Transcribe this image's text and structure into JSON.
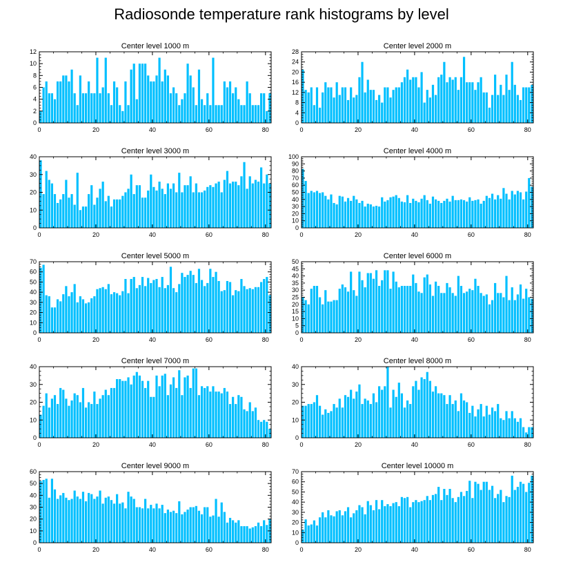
{
  "title": "Radiosonde temperature rank histograms by level",
  "bar_color": "#00bfff",
  "chart_data": [
    {
      "type": "bar",
      "title": "Center level 1000 m",
      "xlabel": "",
      "ylabel": "",
      "xlim": [
        0,
        82
      ],
      "ylim": [
        0,
        12
      ],
      "xticks": [
        0,
        20,
        40,
        60,
        80
      ],
      "yticks": [
        0,
        2,
        4,
        6,
        8,
        10,
        12
      ],
      "x_start": 0,
      "values": [
        2,
        6,
        7,
        5,
        5,
        4,
        7,
        7,
        8,
        8,
        7,
        9,
        5,
        3,
        8,
        5,
        5,
        7,
        5,
        5,
        11,
        5,
        6,
        11,
        5,
        3,
        7,
        6,
        3,
        2,
        7,
        3,
        9,
        10,
        4,
        10,
        10,
        10,
        8,
        7,
        7,
        8,
        11,
        7,
        9,
        8,
        5,
        6,
        5,
        3,
        4,
        5,
        10,
        8,
        6,
        3,
        9,
        4,
        3,
        5,
        3,
        11,
        3,
        3,
        3,
        7,
        6,
        7,
        5,
        6,
        4,
        3,
        3,
        7,
        5,
        3,
        3,
        3,
        5,
        5,
        2,
        5
      ]
    },
    {
      "type": "bar",
      "title": "Center level 2000 m",
      "xlabel": "",
      "ylabel": "",
      "xlim": [
        0,
        82
      ],
      "ylim": [
        0,
        28
      ],
      "xticks": [
        0,
        20,
        40,
        60,
        80
      ],
      "yticks": [
        0,
        4,
        8,
        12,
        16,
        20,
        24,
        28
      ],
      "x_start": 0,
      "values": [
        21,
        13,
        12,
        14,
        7,
        14,
        6,
        12,
        16,
        14,
        14,
        10,
        16,
        11,
        14,
        14,
        9,
        14,
        10,
        11,
        18,
        24,
        12,
        17,
        13,
        13,
        9,
        11,
        8,
        14,
        14,
        10,
        13,
        14,
        14,
        16,
        18,
        21,
        17,
        18,
        18,
        14,
        20,
        8,
        13,
        10,
        15,
        11,
        18,
        19,
        24,
        16,
        18,
        17,
        18,
        13,
        18,
        26,
        16,
        16,
        16,
        13,
        16,
        18,
        12,
        12,
        6,
        11,
        19,
        11,
        15,
        11,
        19,
        13,
        24,
        15,
        11,
        9,
        14,
        14,
        14,
        15
      ]
    },
    {
      "type": "bar",
      "title": "Center level 3000 m",
      "xlabel": "",
      "ylabel": "",
      "xlim": [
        0,
        82
      ],
      "ylim": [
        0,
        40
      ],
      "xticks": [
        0,
        20,
        40,
        60,
        80
      ],
      "yticks": [
        0,
        10,
        20,
        30,
        40
      ],
      "x_start": 0,
      "values": [
        38,
        19,
        32,
        27,
        25,
        19,
        14,
        16,
        19,
        27,
        17,
        19,
        13,
        31,
        10,
        12,
        12,
        19,
        24,
        13,
        17,
        22,
        26,
        15,
        18,
        12,
        16,
        16,
        16,
        18,
        20,
        22,
        30,
        19,
        24,
        24,
        17,
        17,
        21,
        30,
        23,
        21,
        26,
        22,
        19,
        25,
        22,
        25,
        20,
        31,
        20,
        24,
        24,
        29,
        20,
        25,
        20,
        20,
        21,
        23,
        24,
        23,
        25,
        26,
        20,
        27,
        32,
        25,
        26,
        26,
        24,
        29,
        37,
        22,
        29,
        25,
        27,
        26,
        34,
        25,
        30,
        25
      ]
    },
    {
      "type": "bar",
      "title": "Center level 4000 m",
      "xlabel": "",
      "ylabel": "",
      "xlim": [
        0,
        82
      ],
      "ylim": [
        0,
        100
      ],
      "xticks": [
        0,
        20,
        40,
        60,
        80
      ],
      "yticks": [
        0,
        10,
        20,
        30,
        40,
        50,
        60,
        70,
        80,
        90,
        100
      ],
      "x_start": 0,
      "values": [
        83,
        66,
        49,
        52,
        50,
        52,
        49,
        50,
        45,
        40,
        47,
        35,
        33,
        45,
        44,
        37,
        42,
        38,
        45,
        40,
        35,
        38,
        30,
        34,
        33,
        30,
        31,
        30,
        43,
        37,
        39,
        43,
        44,
        46,
        42,
        37,
        36,
        46,
        35,
        41,
        38,
        36,
        41,
        46,
        39,
        34,
        44,
        40,
        38,
        35,
        38,
        41,
        37,
        45,
        39,
        39,
        40,
        39,
        37,
        43,
        38,
        39,
        40,
        34,
        38,
        45,
        42,
        48,
        40,
        46,
        41,
        56,
        48,
        40,
        52,
        47,
        52,
        50,
        40,
        51,
        70,
        58
      ]
    },
    {
      "type": "bar",
      "title": "Center level 5000 m",
      "xlabel": "",
      "ylabel": "",
      "xlim": [
        0,
        82
      ],
      "ylim": [
        0,
        70
      ],
      "xticks": [
        0,
        20,
        40,
        60,
        80
      ],
      "yticks": [
        0,
        10,
        20,
        30,
        40,
        50,
        60,
        70
      ],
      "x_start": 0,
      "values": [
        64,
        67,
        37,
        36,
        25,
        25,
        33,
        31,
        38,
        46,
        36,
        40,
        48,
        30,
        36,
        33,
        29,
        30,
        34,
        36,
        43,
        44,
        45,
        43,
        48,
        38,
        40,
        39,
        37,
        41,
        53,
        39,
        53,
        55,
        44,
        47,
        55,
        46,
        54,
        49,
        52,
        53,
        45,
        55,
        44,
        47,
        65,
        44,
        40,
        48,
        59,
        55,
        57,
        61,
        57,
        49,
        63,
        52,
        46,
        49,
        63,
        55,
        60,
        51,
        41,
        42,
        51,
        50,
        37,
        42,
        41,
        53,
        46,
        43,
        44,
        43,
        45,
        45,
        50,
        53,
        55,
        37
      ]
    },
    {
      "type": "bar",
      "title": "Center level 6000 m",
      "xlabel": "",
      "ylabel": "",
      "xlim": [
        0,
        82
      ],
      "ylim": [
        0,
        50
      ],
      "xticks": [
        0,
        20,
        40,
        60,
        80
      ],
      "yticks": [
        0,
        5,
        10,
        15,
        20,
        25,
        30,
        35,
        40,
        45,
        50
      ],
      "x_start": 0,
      "values": [
        25,
        23,
        20,
        31,
        33,
        33,
        25,
        20,
        30,
        22,
        22,
        23,
        23,
        31,
        34,
        32,
        29,
        43,
        30,
        26,
        43,
        37,
        32,
        42,
        42,
        38,
        44,
        33,
        37,
        44,
        44,
        31,
        43,
        36,
        32,
        33,
        33,
        33,
        33,
        41,
        35,
        29,
        28,
        39,
        41,
        34,
        26,
        36,
        33,
        28,
        28,
        35,
        32,
        28,
        26,
        40,
        33,
        28,
        29,
        31,
        30,
        38,
        33,
        28,
        26,
        27,
        20,
        23,
        35,
        28,
        28,
        25,
        40,
        23,
        32,
        23,
        27,
        34,
        24,
        31,
        25,
        24
      ]
    },
    {
      "type": "bar",
      "title": "Center level 7000 m",
      "xlabel": "",
      "ylabel": "",
      "xlim": [
        0,
        82
      ],
      "ylim": [
        0,
        40
      ],
      "xticks": [
        0,
        20,
        40,
        60,
        80
      ],
      "yticks": [
        0,
        10,
        20,
        30,
        40
      ],
      "x_start": 0,
      "values": [
        13,
        18,
        25,
        17,
        22,
        24,
        19,
        28,
        27,
        22,
        18,
        21,
        25,
        24,
        20,
        28,
        17,
        20,
        19,
        26,
        19,
        22,
        24,
        27,
        24,
        28,
        28,
        33,
        33,
        32,
        32,
        34,
        30,
        35,
        37,
        35,
        32,
        28,
        32,
        23,
        23,
        35,
        29,
        35,
        36,
        24,
        30,
        34,
        28,
        38,
        24,
        34,
        35,
        28,
        39,
        39,
        24,
        29,
        28,
        29,
        26,
        29,
        26,
        26,
        25,
        28,
        26,
        19,
        23,
        19,
        24,
        23,
        16,
        15,
        20,
        15,
        17,
        10,
        9,
        10,
        9,
        5
      ]
    },
    {
      "type": "bar",
      "title": "Center level 8000 m",
      "xlabel": "",
      "ylabel": "",
      "xlim": [
        0,
        82
      ],
      "ylim": [
        0,
        40
      ],
      "xticks": [
        0,
        20,
        40,
        60,
        80
      ],
      "yticks": [
        0,
        10,
        20,
        30,
        40
      ],
      "x_start": 0,
      "values": [
        18,
        18,
        19,
        19,
        20,
        24,
        18,
        13,
        16,
        14,
        15,
        19,
        17,
        22,
        17,
        24,
        23,
        27,
        22,
        26,
        30,
        19,
        22,
        21,
        19,
        25,
        20,
        29,
        27,
        29,
        40,
        17,
        27,
        23,
        31,
        25,
        17,
        21,
        19,
        29,
        32,
        27,
        34,
        33,
        37,
        32,
        26,
        29,
        25,
        25,
        24,
        19,
        24,
        19,
        21,
        15,
        25,
        21,
        20,
        14,
        18,
        12,
        16,
        19,
        12,
        18,
        13,
        17,
        15,
        19,
        11,
        10,
        15,
        11,
        15,
        11,
        9,
        11,
        6,
        3,
        6,
        6
      ]
    },
    {
      "type": "bar",
      "title": "Center level 9000 m",
      "xlabel": "",
      "ylabel": "",
      "xlim": [
        0,
        82
      ],
      "ylim": [
        0,
        60
      ],
      "xticks": [
        0,
        20,
        40,
        60,
        80
      ],
      "yticks": [
        0,
        10,
        20,
        30,
        40,
        50,
        60
      ],
      "x_start": 0,
      "values": [
        52,
        53,
        54,
        38,
        54,
        45,
        37,
        40,
        42,
        38,
        36,
        37,
        44,
        39,
        37,
        43,
        35,
        42,
        41,
        37,
        39,
        44,
        33,
        38,
        39,
        36,
        33,
        41,
        33,
        34,
        29,
        43,
        39,
        37,
        30,
        30,
        29,
        37,
        29,
        32,
        29,
        33,
        29,
        32,
        25,
        28,
        26,
        27,
        25,
        35,
        24,
        26,
        28,
        30,
        30,
        31,
        27,
        24,
        30,
        30,
        22,
        23,
        37,
        22,
        34,
        26,
        17,
        21,
        19,
        17,
        19,
        14,
        14,
        14,
        12,
        13,
        14,
        17,
        14,
        19,
        15,
        20
      ]
    },
    {
      "type": "bar",
      "title": "Center level 10000 m",
      "xlabel": "",
      "ylabel": "",
      "xlim": [
        0,
        82
      ],
      "ylim": [
        0,
        70
      ],
      "xticks": [
        0,
        20,
        40,
        60,
        80
      ],
      "yticks": [
        0,
        10,
        20,
        30,
        40,
        50,
        60,
        70
      ],
      "x_start": 0,
      "values": [
        13,
        23,
        17,
        18,
        22,
        17,
        25,
        30,
        25,
        32,
        27,
        26,
        31,
        32,
        27,
        31,
        35,
        25,
        29,
        32,
        37,
        35,
        28,
        41,
        37,
        32,
        42,
        33,
        42,
        36,
        38,
        36,
        39,
        40,
        36,
        45,
        44,
        45,
        35,
        40,
        42,
        40,
        41,
        42,
        46,
        42,
        47,
        48,
        55,
        42,
        53,
        47,
        53,
        44,
        40,
        45,
        50,
        46,
        51,
        61,
        44,
        60,
        58,
        52,
        60,
        60,
        52,
        56,
        44,
        48,
        52,
        40,
        46,
        45,
        66,
        52,
        55,
        60,
        58,
        50,
        59,
        66
      ]
    }
  ]
}
